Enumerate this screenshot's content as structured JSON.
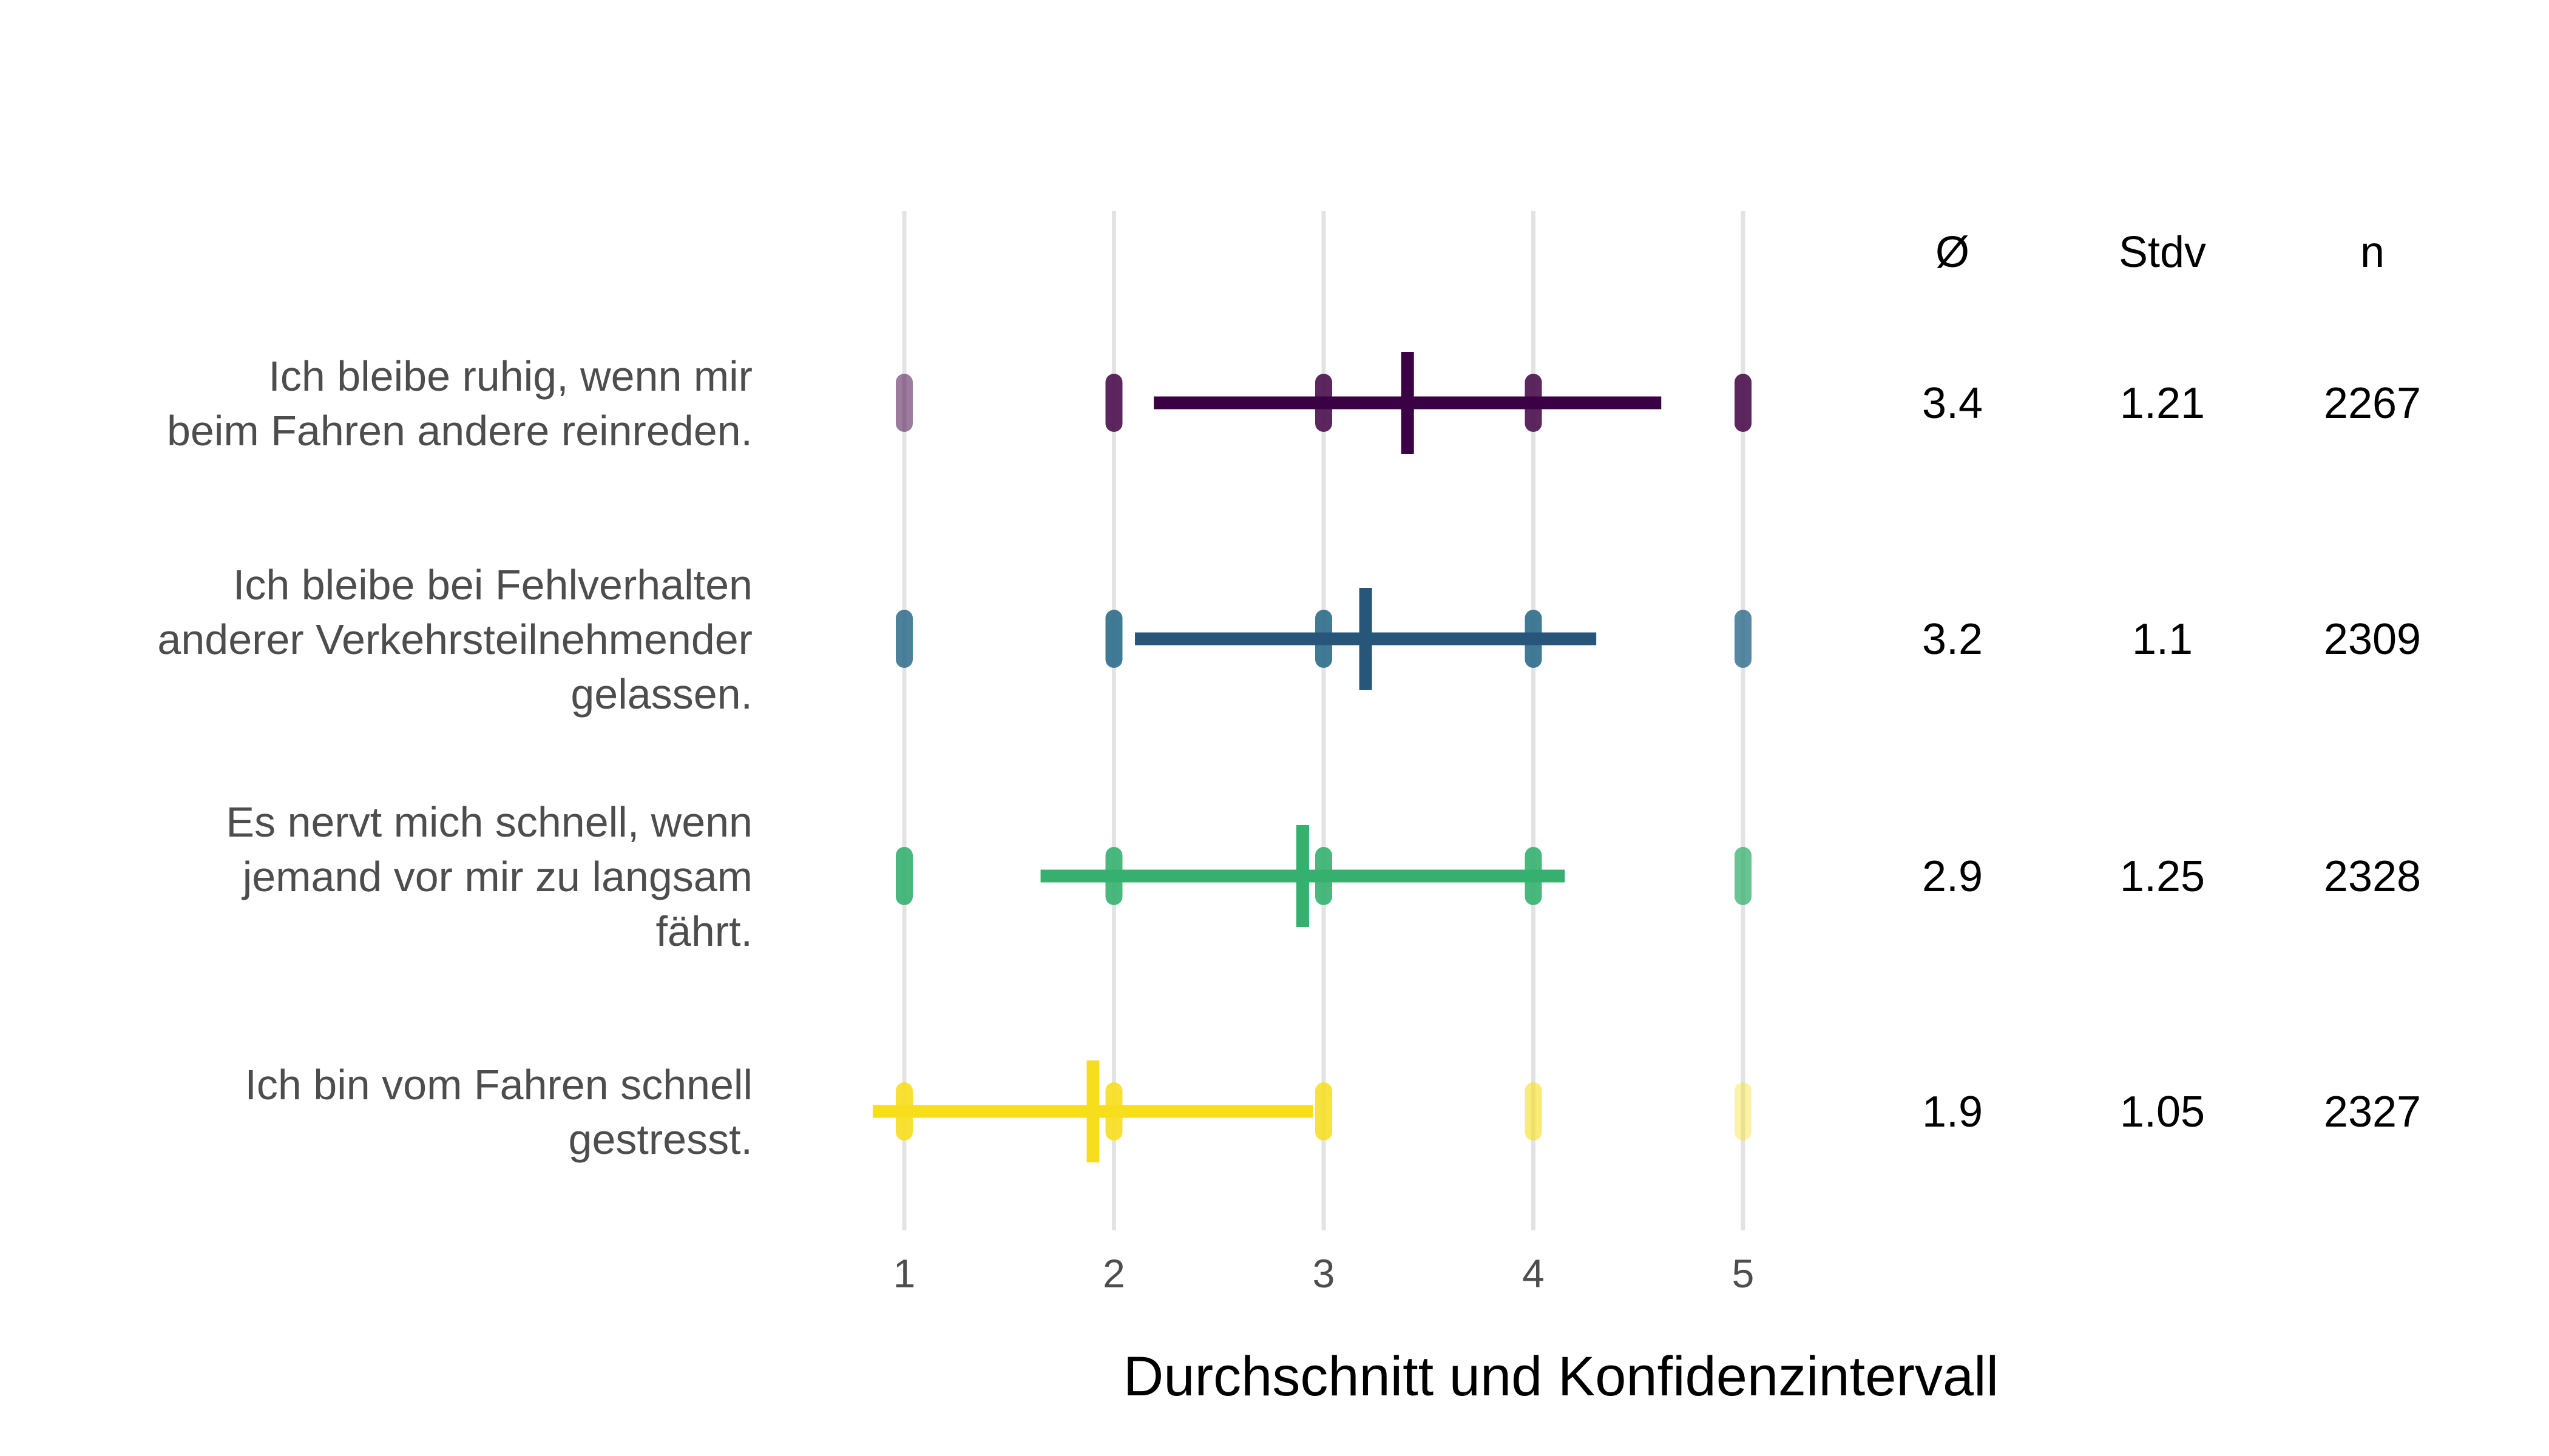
{
  "chart_data": {
    "type": "errorbar-dotplot",
    "xlabel": "Durchschnitt und Konfidenzintervall",
    "xlim": [
      0.75,
      5.15
    ],
    "xticks": [
      "1",
      "2",
      "3",
      "4",
      "5"
    ],
    "xtick_values": [
      1,
      2,
      3,
      4,
      5
    ],
    "grid": "vertical",
    "table_headers": [
      "Ø",
      "Stdv",
      "n"
    ],
    "series": [
      {
        "label_lines": [
          "Ich bleibe ruhig, wenn mir",
          "beim Fahren andere reinreden."
        ],
        "mean": 3.4,
        "sd": 1.21,
        "n": 2267,
        "mean_text": "3.4",
        "sd_text": "1.21",
        "n_text": "2267",
        "color": "#3a0244",
        "point_color": "#4a0e4e",
        "point_alpha": [
          0.55,
          0.9,
          0.9,
          0.9,
          0.9
        ]
      },
      {
        "label_lines": [
          "Ich bleibe bei Fehlverhalten",
          "anderer Verkehrsteilnehmender",
          "gelassen."
        ],
        "mean": 3.2,
        "sd": 1.1,
        "n": 2309,
        "mean_text": "3.2",
        "sd_text": "1.1",
        "n_text": "2309",
        "color": "#28557a",
        "point_color": "#2c6b8a",
        "point_alpha": [
          0.85,
          0.9,
          0.9,
          0.9,
          0.8
        ]
      },
      {
        "label_lines": [
          "Es nervt mich schnell, wenn",
          "jemand vor mir zu langsam",
          "fährt."
        ],
        "mean": 2.9,
        "sd": 1.25,
        "n": 2328,
        "mean_text": "2.9",
        "sd_text": "1.25",
        "n_text": "2328",
        "color": "#35b06f",
        "point_color": "#35b06f",
        "point_alpha": [
          0.9,
          0.9,
          0.9,
          0.9,
          0.75
        ]
      },
      {
        "label_lines": [
          "Ich bin vom Fahren schnell",
          "gestresst."
        ],
        "mean": 1.9,
        "sd": 1.05,
        "n": 2327,
        "mean_text": "1.9",
        "sd_text": "1.05",
        "n_text": "2327",
        "color": "#f7de1c",
        "point_color": "#f7de1c",
        "point_alpha": [
          0.9,
          0.9,
          0.85,
          0.6,
          0.4
        ]
      }
    ]
  }
}
